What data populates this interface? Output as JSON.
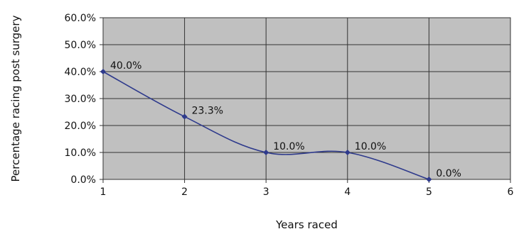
{
  "chart_data": {
    "type": "line",
    "xlabel": "Years raced",
    "ylabel": "Percentage racing post surgery",
    "xlim": [
      1,
      6
    ],
    "ylim": [
      0,
      60
    ],
    "x_ticks": [
      "1",
      "2",
      "3",
      "4",
      "5",
      "6"
    ],
    "y_ticks": [
      "0.0%",
      "10.0%",
      "20.0%",
      "30.0%",
      "40.0%",
      "50.0%",
      "60.0%"
    ],
    "grid": true,
    "legend": "none",
    "colors": {
      "plot_background": "#c0c0c0",
      "line": "#2e3a8c",
      "grid": "#333333"
    },
    "series": [
      {
        "x": [
          1,
          2,
          3,
          4,
          5
        ],
        "values": [
          40.0,
          23.3,
          10.0,
          10.0,
          0.0
        ],
        "labels": [
          "40.0%",
          "23.3%",
          "10.0%",
          "10.0%",
          "0.0%"
        ]
      }
    ]
  }
}
